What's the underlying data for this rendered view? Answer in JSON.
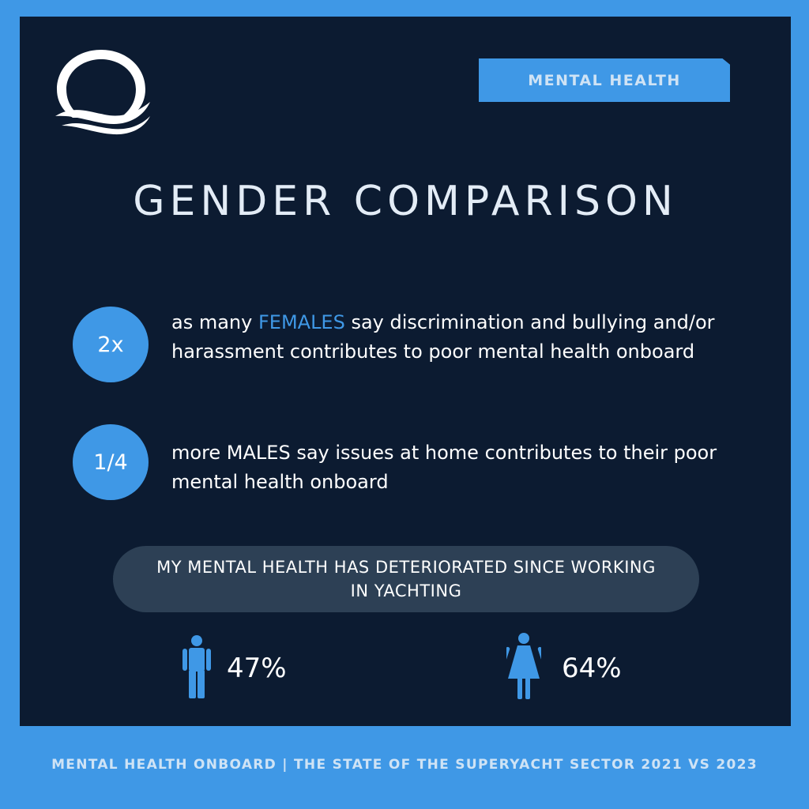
{
  "tag": "MENTAL HEALTH",
  "title": "GENDER COMPARISON",
  "stats": [
    {
      "badge": "2x",
      "pre": "as many ",
      "highlight": "FEMALES",
      "post": " say discrimination and bullying and/or harassment contributes to poor mental health onboard"
    },
    {
      "badge": "1/4",
      "text": "more MALES say issues at home contributes to their poor mental health onboard"
    }
  ],
  "deterioration": {
    "heading": "MY MENTAL HEALTH HAS DETERIORATED SINCE WORKING IN YACHTING",
    "male_icon": "male-person-icon",
    "male_percent": "47%",
    "female_icon": "female-person-icon",
    "female_percent": "64%"
  },
  "footer": "MENTAL HEALTH ONBOARD | THE STATE OF THE SUPERYACHT SECTOR 2021 VS 2023",
  "colors": {
    "background": "#3f98e6",
    "panel": "#0c1b31",
    "accent": "#3f98e6",
    "pill": "#2d4055"
  }
}
